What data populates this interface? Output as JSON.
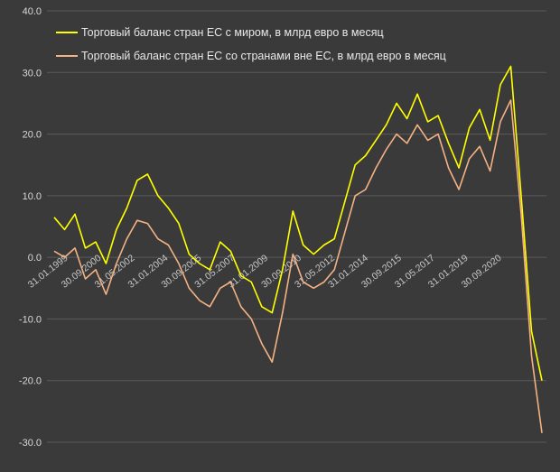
{
  "chart_data": {
    "type": "line",
    "title": "",
    "xlabel": "",
    "ylabel": "",
    "ylim": [
      -30,
      40
    ],
    "yticks": [
      "40.0",
      "30.0",
      "20.0",
      "10.0",
      "0.0",
      "-10.0",
      "-20.0",
      "-30.0"
    ],
    "xticks": [
      "31.01.1999",
      "30.09.2000",
      "31.05.2002",
      "31.01.2004",
      "30.09.2005",
      "31.05.2007",
      "31.01.2009",
      "30.09.2010",
      "31.05.2012",
      "31.01.2014",
      "30.09.2015",
      "31.05.2017",
      "31.01.2019",
      "30.09.2020"
    ],
    "grid": "horizontal",
    "legend_position": "top-left",
    "x": [
      "1999",
      "1999.5",
      "2000",
      "2000.5",
      "2001",
      "2001.5",
      "2002",
      "2002.5",
      "2003",
      "2003.5",
      "2004",
      "2004.5",
      "2005",
      "2005.5",
      "2006",
      "2006.5",
      "2007",
      "2007.5",
      "2008",
      "2008.5",
      "2009",
      "2009.5",
      "2010",
      "2010.5",
      "2011",
      "2011.5",
      "2012",
      "2012.5",
      "2013",
      "2013.5",
      "2014",
      "2014.5",
      "2015",
      "2015.5",
      "2016",
      "2016.5",
      "2017",
      "2017.5",
      "2018",
      "2018.5",
      "2019",
      "2019.5",
      "2020",
      "2020.5",
      "2021",
      "2021.5",
      "2022",
      "2022.5"
    ],
    "series": [
      {
        "name": "Торговый баланс стран ЕС с миром, в млрд евро в месяц",
        "color": "#ffff00",
        "values": [
          6.5,
          4.5,
          7.0,
          1.5,
          2.5,
          -1.0,
          4.5,
          8.0,
          12.5,
          13.5,
          10.0,
          8.0,
          5.5,
          0.5,
          -1.0,
          -2.0,
          2.5,
          1.0,
          -3.0,
          -4.0,
          -8.0,
          -9.0,
          -2.0,
          7.5,
          2.0,
          0.5,
          2.0,
          3.0,
          9.0,
          15.0,
          16.5,
          19.0,
          21.5,
          25.0,
          22.5,
          26.5,
          22.0,
          23.0,
          18.5,
          14.5,
          21.0,
          24.0,
          19.0,
          28.0,
          31.0,
          10.0,
          -12.0,
          -20.0
        ]
      },
      {
        "name": "Торговый баланс стран ЕС со странами вне ЕС, в млрд евро в месяц",
        "color": "#f4b183",
        "values": [
          1.0,
          0.0,
          1.5,
          -3.5,
          -2.0,
          -6.0,
          -1.0,
          3.0,
          6.0,
          5.5,
          3.0,
          2.0,
          -1.0,
          -5.0,
          -7.0,
          -8.0,
          -5.0,
          -4.0,
          -8.0,
          -10.0,
          -14.0,
          -17.0,
          -9.0,
          0.5,
          -4.0,
          -5.0,
          -4.0,
          -2.0,
          4.0,
          10.0,
          11.0,
          14.5,
          17.5,
          20.0,
          18.5,
          21.5,
          19.0,
          20.0,
          14.5,
          11.0,
          16.0,
          18.0,
          14.0,
          22.0,
          25.5,
          7.0,
          -16.0,
          -28.5
        ]
      }
    ]
  }
}
